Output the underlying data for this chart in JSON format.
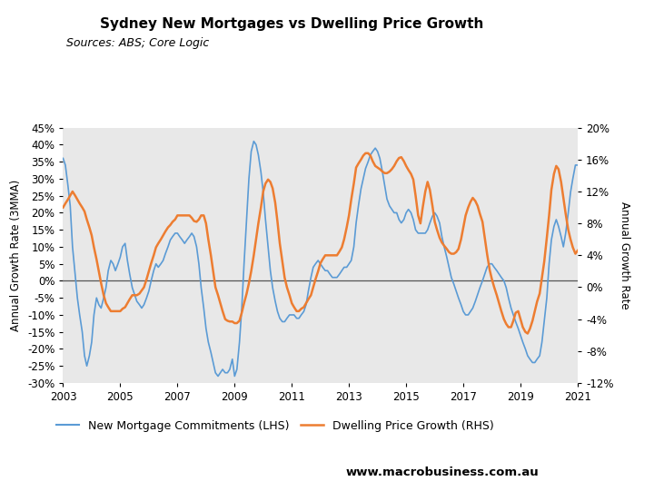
{
  "title": "Sydney New Mortgages vs Dwelling Price Growth",
  "subtitle": "Sources: ABS; Core Logic",
  "ylabel_left": "Annual Growth Rate (3MMA)",
  "ylabel_right": "Annual Growth Rate",
  "ylim_left": [
    -0.3,
    0.45
  ],
  "ylim_right": [
    -0.12,
    0.2
  ],
  "yticks_left": [
    -0.3,
    -0.25,
    -0.2,
    -0.15,
    -0.1,
    -0.05,
    0.0,
    0.05,
    0.1,
    0.15,
    0.2,
    0.25,
    0.3,
    0.35,
    0.4,
    0.45
  ],
  "yticks_right": [
    -0.12,
    -0.08,
    -0.04,
    0.0,
    0.04,
    0.08,
    0.12,
    0.16,
    0.2
  ],
  "xlim": [
    2003.0,
    2021.0
  ],
  "xticks": [
    2003,
    2005,
    2007,
    2009,
    2011,
    2013,
    2015,
    2017,
    2019,
    2021
  ],
  "background_color": "#e8e8e8",
  "line1_color": "#5b9bd5",
  "line2_color": "#ed7d31",
  "line1_label": "New Mortgage Commitments (LHS)",
  "line2_label": "Dwelling Price Growth (RHS)",
  "logo_bg": "#cc1111",
  "website": "www.macrobusiness.com.au",
  "lhs_data_x": [
    2003.0,
    2003.08,
    2003.17,
    2003.25,
    2003.33,
    2003.42,
    2003.5,
    2003.58,
    2003.67,
    2003.75,
    2003.83,
    2003.92,
    2004.0,
    2004.08,
    2004.17,
    2004.25,
    2004.33,
    2004.42,
    2004.5,
    2004.58,
    2004.67,
    2004.75,
    2004.83,
    2004.92,
    2005.0,
    2005.08,
    2005.17,
    2005.25,
    2005.33,
    2005.42,
    2005.5,
    2005.58,
    2005.67,
    2005.75,
    2005.83,
    2005.92,
    2006.0,
    2006.08,
    2006.17,
    2006.25,
    2006.33,
    2006.42,
    2006.5,
    2006.58,
    2006.67,
    2006.75,
    2006.83,
    2006.92,
    2007.0,
    2007.08,
    2007.17,
    2007.25,
    2007.33,
    2007.42,
    2007.5,
    2007.58,
    2007.67,
    2007.75,
    2007.83,
    2007.92,
    2008.0,
    2008.08,
    2008.17,
    2008.25,
    2008.33,
    2008.42,
    2008.5,
    2008.58,
    2008.67,
    2008.75,
    2008.83,
    2008.92,
    2009.0,
    2009.08,
    2009.17,
    2009.25,
    2009.33,
    2009.42,
    2009.5,
    2009.58,
    2009.67,
    2009.75,
    2009.83,
    2009.92,
    2010.0,
    2010.08,
    2010.17,
    2010.25,
    2010.33,
    2010.42,
    2010.5,
    2010.58,
    2010.67,
    2010.75,
    2010.83,
    2010.92,
    2011.0,
    2011.08,
    2011.17,
    2011.25,
    2011.33,
    2011.42,
    2011.5,
    2011.58,
    2011.67,
    2011.75,
    2011.83,
    2011.92,
    2012.0,
    2012.08,
    2012.17,
    2012.25,
    2012.33,
    2012.42,
    2012.5,
    2012.58,
    2012.67,
    2012.75,
    2012.83,
    2012.92,
    2013.0,
    2013.08,
    2013.17,
    2013.25,
    2013.33,
    2013.42,
    2013.5,
    2013.58,
    2013.67,
    2013.75,
    2013.83,
    2013.92,
    2014.0,
    2014.08,
    2014.17,
    2014.25,
    2014.33,
    2014.42,
    2014.5,
    2014.58,
    2014.67,
    2014.75,
    2014.83,
    2014.92,
    2015.0,
    2015.08,
    2015.17,
    2015.25,
    2015.33,
    2015.42,
    2015.5,
    2015.58,
    2015.67,
    2015.75,
    2015.83,
    2015.92,
    2016.0,
    2016.08,
    2016.17,
    2016.25,
    2016.33,
    2016.42,
    2016.5,
    2016.58,
    2016.67,
    2016.75,
    2016.83,
    2016.92,
    2017.0,
    2017.08,
    2017.17,
    2017.25,
    2017.33,
    2017.42,
    2017.5,
    2017.58,
    2017.67,
    2017.75,
    2017.83,
    2017.92,
    2018.0,
    2018.08,
    2018.17,
    2018.25,
    2018.33,
    2018.42,
    2018.5,
    2018.58,
    2018.67,
    2018.75,
    2018.83,
    2018.92,
    2019.0,
    2019.08,
    2019.17,
    2019.25,
    2019.33,
    2019.42,
    2019.5,
    2019.58,
    2019.67,
    2019.75,
    2019.83,
    2019.92,
    2020.0,
    2020.08,
    2020.17,
    2020.25,
    2020.33,
    2020.42,
    2020.5,
    2020.58,
    2020.67,
    2020.75,
    2020.83,
    2020.92,
    2021.0
  ],
  "lhs_data_y": [
    0.36,
    0.34,
    0.28,
    0.22,
    0.1,
    0.02,
    -0.05,
    -0.1,
    -0.15,
    -0.22,
    -0.25,
    -0.22,
    -0.18,
    -0.1,
    -0.05,
    -0.07,
    -0.08,
    -0.05,
    -0.02,
    0.03,
    0.06,
    0.05,
    0.03,
    0.05,
    0.07,
    0.1,
    0.11,
    0.06,
    0.02,
    -0.02,
    -0.04,
    -0.06,
    -0.07,
    -0.08,
    -0.07,
    -0.05,
    -0.03,
    0.0,
    0.03,
    0.05,
    0.04,
    0.05,
    0.06,
    0.08,
    0.1,
    0.12,
    0.13,
    0.14,
    0.14,
    0.13,
    0.12,
    0.11,
    0.12,
    0.13,
    0.14,
    0.13,
    0.1,
    0.05,
    -0.02,
    -0.08,
    -0.14,
    -0.18,
    -0.21,
    -0.24,
    -0.27,
    -0.28,
    -0.27,
    -0.26,
    -0.27,
    -0.27,
    -0.26,
    -0.23,
    -0.28,
    -0.26,
    -0.18,
    -0.08,
    0.05,
    0.18,
    0.3,
    0.38,
    0.41,
    0.4,
    0.37,
    0.32,
    0.26,
    0.18,
    0.1,
    0.03,
    -0.02,
    -0.06,
    -0.09,
    -0.11,
    -0.12,
    -0.12,
    -0.11,
    -0.1,
    -0.1,
    -0.1,
    -0.11,
    -0.11,
    -0.1,
    -0.09,
    -0.07,
    -0.03,
    0.01,
    0.04,
    0.05,
    0.06,
    0.05,
    0.04,
    0.03,
    0.03,
    0.02,
    0.01,
    0.01,
    0.01,
    0.02,
    0.03,
    0.04,
    0.04,
    0.05,
    0.06,
    0.1,
    0.17,
    0.22,
    0.27,
    0.3,
    0.33,
    0.35,
    0.37,
    0.38,
    0.39,
    0.38,
    0.36,
    0.32,
    0.28,
    0.24,
    0.22,
    0.21,
    0.2,
    0.2,
    0.18,
    0.17,
    0.18,
    0.2,
    0.21,
    0.2,
    0.18,
    0.15,
    0.14,
    0.14,
    0.14,
    0.14,
    0.15,
    0.17,
    0.19,
    0.2,
    0.19,
    0.17,
    0.13,
    0.1,
    0.07,
    0.04,
    0.01,
    -0.01,
    -0.03,
    -0.05,
    -0.07,
    -0.09,
    -0.1,
    -0.1,
    -0.09,
    -0.08,
    -0.06,
    -0.04,
    -0.02,
    0.0,
    0.02,
    0.04,
    0.05,
    0.05,
    0.04,
    0.03,
    0.02,
    0.01,
    0.0,
    -0.02,
    -0.05,
    -0.08,
    -0.1,
    -0.12,
    -0.14,
    -0.16,
    -0.18,
    -0.2,
    -0.22,
    -0.23,
    -0.24,
    -0.24,
    -0.23,
    -0.22,
    -0.18,
    -0.12,
    -0.05,
    0.05,
    0.12,
    0.16,
    0.18,
    0.16,
    0.13,
    0.1,
    0.14,
    0.2,
    0.26,
    0.3,
    0.34,
    0.34
  ],
  "rhs_data_y": [
    0.1,
    0.105,
    0.11,
    0.115,
    0.12,
    0.115,
    0.11,
    0.105,
    0.1,
    0.095,
    0.085,
    0.075,
    0.065,
    0.05,
    0.035,
    0.02,
    0.005,
    -0.01,
    -0.02,
    -0.025,
    -0.03,
    -0.03,
    -0.03,
    -0.03,
    -0.03,
    -0.027,
    -0.025,
    -0.02,
    -0.015,
    -0.01,
    -0.01,
    -0.01,
    -0.008,
    -0.004,
    0.0,
    0.01,
    0.02,
    0.03,
    0.04,
    0.05,
    0.055,
    0.06,
    0.065,
    0.07,
    0.075,
    0.078,
    0.082,
    0.085,
    0.09,
    0.09,
    0.09,
    0.09,
    0.09,
    0.09,
    0.087,
    0.083,
    0.082,
    0.085,
    0.09,
    0.09,
    0.08,
    0.06,
    0.04,
    0.02,
    0.0,
    -0.01,
    -0.02,
    -0.03,
    -0.04,
    -0.042,
    -0.043,
    -0.043,
    -0.045,
    -0.045,
    -0.042,
    -0.032,
    -0.02,
    -0.008,
    0.005,
    0.02,
    0.04,
    0.06,
    0.08,
    0.1,
    0.12,
    0.13,
    0.135,
    0.132,
    0.124,
    0.106,
    0.082,
    0.055,
    0.032,
    0.012,
    0.0,
    -0.01,
    -0.02,
    -0.025,
    -0.03,
    -0.03,
    -0.027,
    -0.025,
    -0.02,
    -0.015,
    -0.01,
    0.0,
    0.01,
    0.02,
    0.03,
    0.035,
    0.04,
    0.04,
    0.04,
    0.04,
    0.04,
    0.04,
    0.045,
    0.05,
    0.06,
    0.075,
    0.09,
    0.11,
    0.13,
    0.15,
    0.155,
    0.16,
    0.165,
    0.168,
    0.168,
    0.165,
    0.158,
    0.152,
    0.15,
    0.148,
    0.145,
    0.143,
    0.143,
    0.145,
    0.148,
    0.152,
    0.158,
    0.162,
    0.163,
    0.158,
    0.152,
    0.147,
    0.142,
    0.135,
    0.115,
    0.09,
    0.08,
    0.1,
    0.12,
    0.132,
    0.122,
    0.102,
    0.082,
    0.072,
    0.062,
    0.056,
    0.052,
    0.048,
    0.044,
    0.042,
    0.042,
    0.044,
    0.048,
    0.06,
    0.075,
    0.09,
    0.1,
    0.107,
    0.112,
    0.108,
    0.102,
    0.092,
    0.082,
    0.062,
    0.042,
    0.022,
    0.01,
    0.0,
    -0.01,
    -0.02,
    -0.03,
    -0.04,
    -0.046,
    -0.05,
    -0.05,
    -0.042,
    -0.032,
    -0.03,
    -0.04,
    -0.05,
    -0.056,
    -0.058,
    -0.052,
    -0.042,
    -0.03,
    -0.018,
    -0.008,
    0.012,
    0.032,
    0.062,
    0.09,
    0.122,
    0.142,
    0.152,
    0.148,
    0.132,
    0.112,
    0.092,
    0.072,
    0.06,
    0.05,
    0.042,
    0.046
  ]
}
